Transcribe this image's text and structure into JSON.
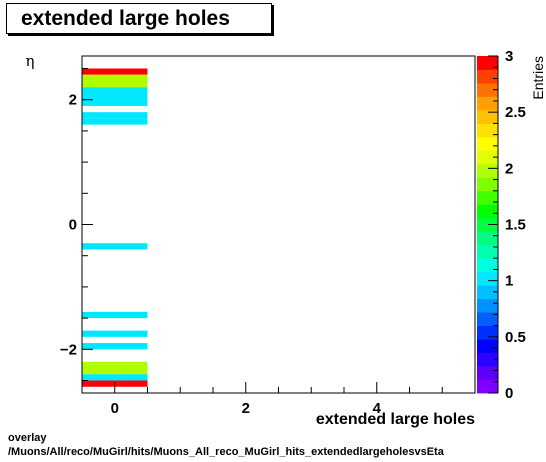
{
  "title": "extended large holes",
  "footer": {
    "line1": "overlay",
    "line2": "/Muons/All/reco/MuGirl/hits/Muons_All_reco_MuGirl_hits_extendedlargeholesvsEta"
  },
  "chart_data": {
    "type": "heatmap",
    "title": "extended large holes",
    "xlabel": "extended large holes",
    "ylabel": "η",
    "zlabel": "Entries",
    "xlim": [
      -0.5,
      5.5
    ],
    "ylim": [
      -2.7,
      2.7
    ],
    "zlim": [
      0,
      3
    ],
    "x_ticks": [
      0,
      2,
      4
    ],
    "y_ticks": [
      -2,
      0,
      2
    ],
    "z_ticks": [
      0,
      0.5,
      1,
      1.5,
      2,
      2.5,
      3
    ],
    "cells": [
      {
        "x0": -0.5,
        "x1": 0.5,
        "y0": 2.4,
        "y1": 2.5,
        "value": 3
      },
      {
        "x0": -0.5,
        "x1": 0.5,
        "y0": 2.2,
        "y1": 2.4,
        "value": 2
      },
      {
        "x0": -0.5,
        "x1": 0.5,
        "y0": 2.1,
        "y1": 2.2,
        "value": 1
      },
      {
        "x0": -0.5,
        "x1": 0.5,
        "y0": 1.9,
        "y1": 2.1,
        "value": 1
      },
      {
        "x0": -0.5,
        "x1": 0.5,
        "y0": 1.6,
        "y1": 1.7,
        "value": 1
      },
      {
        "x0": -0.5,
        "x1": 0.5,
        "y0": 1.7,
        "y1": 1.8,
        "value": 1
      },
      {
        "x0": -0.5,
        "x1": 0.5,
        "y0": -0.4,
        "y1": -0.3,
        "value": 1
      },
      {
        "x0": -0.5,
        "x1": 0.5,
        "y0": -1.5,
        "y1": -1.4,
        "value": 1
      },
      {
        "x0": -0.5,
        "x1": 0.5,
        "y0": -1.8,
        "y1": -1.7,
        "value": 1
      },
      {
        "x0": -0.5,
        "x1": 0.5,
        "y0": -2.0,
        "y1": -1.9,
        "value": 1
      },
      {
        "x0": -0.5,
        "x1": 0.5,
        "y0": -2.4,
        "y1": -2.2,
        "value": 2
      },
      {
        "x0": -0.5,
        "x1": 0.5,
        "y0": -2.5,
        "y1": -2.4,
        "value": 1
      },
      {
        "x0": -0.5,
        "x1": 0.5,
        "y0": -2.6,
        "y1": -2.5,
        "value": 3
      }
    ],
    "palette": [
      "#7f00ff",
      "#5a00ff",
      "#2d00ff",
      "#0000ff",
      "#0030ff",
      "#0060ff",
      "#0090ff",
      "#00c0ff",
      "#00e8ff",
      "#00ffe0",
      "#00ffb0",
      "#00ff80",
      "#00ff40",
      "#00ff00",
      "#40ff00",
      "#80ff00",
      "#b0ff00",
      "#e0ff00",
      "#ffff00",
      "#ffe000",
      "#ffc000",
      "#ffa000",
      "#ff7000",
      "#ff4000",
      "#ff0000"
    ]
  }
}
